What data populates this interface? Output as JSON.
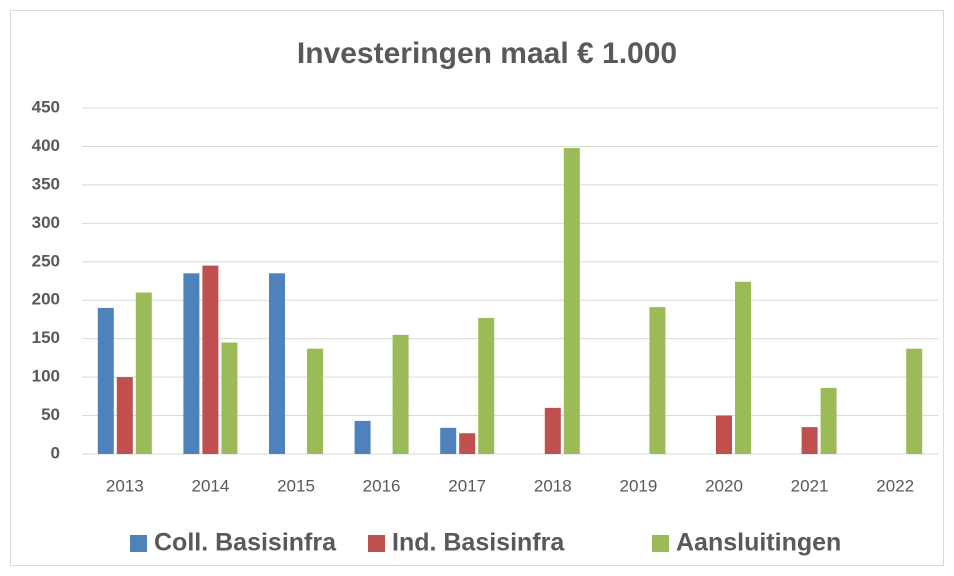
{
  "chart_data": {
    "type": "bar",
    "title": "Investeringen maal € 1.000",
    "categories": [
      "2013",
      "2014",
      "2015",
      "2016",
      "2017",
      "2018",
      "2019",
      "2020",
      "2021",
      "2022"
    ],
    "series": [
      {
        "name": "Coll. Basisinfra",
        "color": "#4f81bd",
        "values": [
          190,
          235,
          235,
          43,
          34,
          0,
          0,
          0,
          0,
          0
        ]
      },
      {
        "name": "Ind. Basisinfra",
        "color": "#c0504d",
        "values": [
          100,
          245,
          0,
          0,
          27,
          60,
          0,
          50,
          35,
          0
        ]
      },
      {
        "name": "Aansluitingen",
        "color": "#9bbb59",
        "values": [
          210,
          145,
          137,
          155,
          177,
          398,
          191,
          224,
          86,
          137
        ]
      }
    ],
    "ylim": [
      0,
      450
    ],
    "yticks": [
      0,
      50,
      100,
      150,
      200,
      250,
      300,
      350,
      400,
      450
    ],
    "grid": true,
    "legend": "bottom"
  }
}
